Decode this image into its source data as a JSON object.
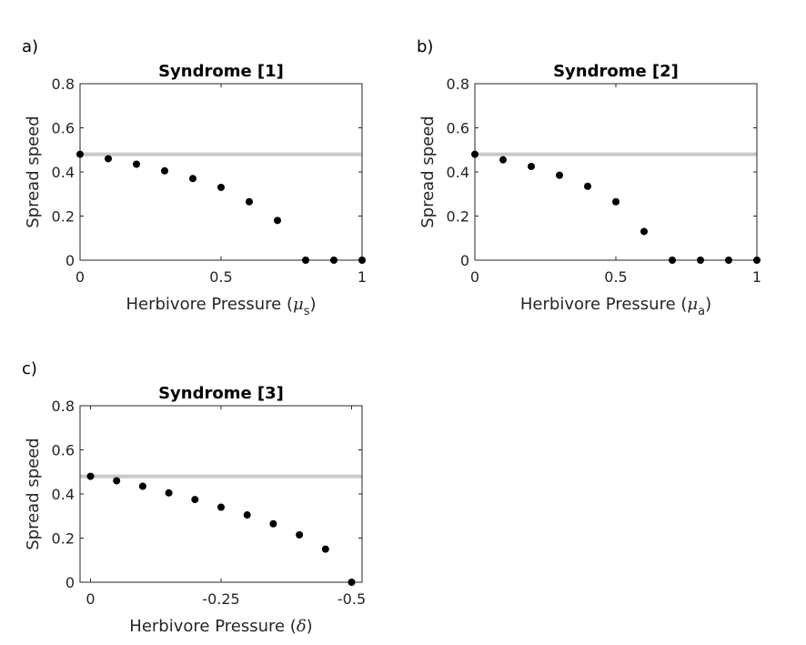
{
  "chart_data": [
    {
      "type": "scatter",
      "panel": "a)",
      "title": "Syndrome [1]",
      "ylabel": "Spread speed",
      "xlabel": {
        "prefix": "Herbivore Pressure (",
        "symbol": "μ",
        "subscript": "s",
        "suffix": ")"
      },
      "xlim": [
        0,
        1
      ],
      "ylim": [
        0,
        0.8
      ],
      "xticks": [
        {
          "value": 0,
          "label": "0"
        },
        {
          "value": 0.5,
          "label": "0.5"
        },
        {
          "value": 1,
          "label": "1"
        }
      ],
      "yticks": [
        {
          "value": 0,
          "label": "0"
        },
        {
          "value": 0.2,
          "label": "0.2"
        },
        {
          "value": 0.4,
          "label": "0.4"
        },
        {
          "value": 0.6,
          "label": "0.6"
        },
        {
          "value": 0.8,
          "label": "0.8"
        }
      ],
      "reference_line": 0.48,
      "x": [
        0,
        0.1,
        0.2,
        0.3,
        0.4,
        0.5,
        0.6,
        0.7,
        0.8,
        0.9,
        1.0
      ],
      "y": [
        0.48,
        0.46,
        0.435,
        0.405,
        0.37,
        0.33,
        0.265,
        0.18,
        0,
        0,
        0
      ]
    },
    {
      "type": "scatter",
      "panel": "b)",
      "title": "Syndrome [2]",
      "ylabel": "Spread speed",
      "xlabel": {
        "prefix": "Herbivore Pressure (",
        "symbol": "μ",
        "subscript": "a",
        "suffix": ")"
      },
      "xlim": [
        0,
        1
      ],
      "ylim": [
        0,
        0.8
      ],
      "xticks": [
        {
          "value": 0,
          "label": "0"
        },
        {
          "value": 0.5,
          "label": "0.5"
        },
        {
          "value": 1,
          "label": "1"
        }
      ],
      "yticks": [
        {
          "value": 0,
          "label": "0"
        },
        {
          "value": 0.2,
          "label": "0.2"
        },
        {
          "value": 0.4,
          "label": "0.4"
        },
        {
          "value": 0.6,
          "label": "0.6"
        },
        {
          "value": 0.8,
          "label": "0.8"
        }
      ],
      "reference_line": 0.48,
      "x": [
        0,
        0.1,
        0.2,
        0.3,
        0.4,
        0.5,
        0.6,
        0.7,
        0.8,
        0.9,
        1.0
      ],
      "y": [
        0.48,
        0.455,
        0.425,
        0.385,
        0.335,
        0.265,
        0.13,
        0,
        0,
        0,
        0
      ]
    },
    {
      "type": "scatter",
      "panel": "c)",
      "title": "Syndrome [3]",
      "ylabel": "Spread speed",
      "xlabel": {
        "prefix": "Herbivore Pressure (",
        "symbol": "δ",
        "subscript": "",
        "suffix": ")"
      },
      "xlim": [
        0.02,
        -0.52
      ],
      "ylim": [
        0,
        0.8
      ],
      "xticks": [
        {
          "value": 0,
          "label": "0"
        },
        {
          "value": -0.25,
          "label": "-0.25"
        },
        {
          "value": -0.5,
          "label": "-0.5"
        }
      ],
      "yticks": [
        {
          "value": 0,
          "label": "0"
        },
        {
          "value": 0.2,
          "label": "0.2"
        },
        {
          "value": 0.4,
          "label": "0.4"
        },
        {
          "value": 0.6,
          "label": "0.6"
        },
        {
          "value": 0.8,
          "label": "0.8"
        }
      ],
      "reference_line": 0.48,
      "x": [
        0,
        -0.05,
        -0.1,
        -0.15,
        -0.2,
        -0.25,
        -0.3,
        -0.35,
        -0.4,
        -0.45,
        -0.5
      ],
      "y": [
        0.48,
        0.46,
        0.435,
        0.405,
        0.375,
        0.34,
        0.305,
        0.265,
        0.215,
        0.15,
        0
      ]
    }
  ]
}
